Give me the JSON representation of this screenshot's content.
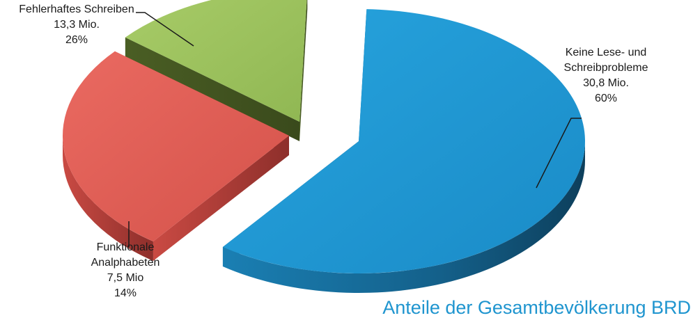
{
  "chart_data": {
    "type": "pie",
    "title": "Anteile der Gesamtbevölkerung BRD",
    "categories": [
      "Keine Lese- und Schreibprobleme",
      "Fehlerhaftes Schreiben",
      "Funktionale Analphabeten"
    ],
    "values": [
      30.8,
      13.3,
      7.5
    ],
    "percent": [
      60,
      26,
      14
    ],
    "colors": [
      "#1f9ad6",
      "#9bc25a",
      "#e25a52"
    ],
    "legend": "none",
    "labels": [
      {
        "lines": [
          "Keine Lese- und",
          "Schreibprobleme",
          "30,8 Mio.",
          "60%"
        ]
      },
      {
        "lines": [
          "Fehlerhaftes Schreiben",
          "13,3 Mio.",
          "26%"
        ]
      },
      {
        "lines": [
          "Funktionale",
          "Analphabeten",
          "7,5 Mio",
          "14%"
        ]
      }
    ]
  }
}
